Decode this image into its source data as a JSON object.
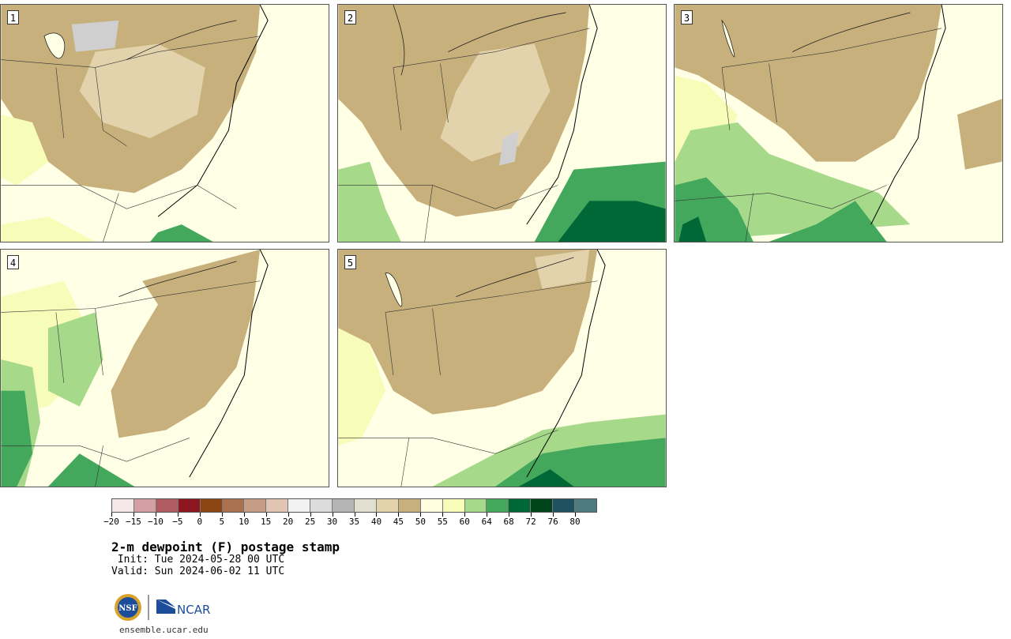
{
  "panels": [
    {
      "label": "1",
      "region": "map-1"
    },
    {
      "label": "2",
      "region": "map-2"
    },
    {
      "label": "3",
      "region": "map-3"
    },
    {
      "label": "4",
      "region": "map-4"
    },
    {
      "label": "5",
      "region": "map-5"
    }
  ],
  "legend": {
    "colors": [
      "#f4e8e8",
      "#d4a0a4",
      "#b05a62",
      "#8c1720",
      "#8b4513",
      "#a97150",
      "#c59d86",
      "#e0c4b4",
      "#f2f2f2",
      "#dcdcdc",
      "#b4b4b4",
      "#dfe0cf",
      "#e3d3ac",
      "#c7b07b",
      "#ffffe0",
      "#f7fcb9",
      "#a6d98a",
      "#43a85c",
      "#006837",
      "#00441b",
      "#1f5160",
      "#4d7b80"
    ],
    "ticks": [
      "−20",
      "−15",
      "−10",
      "−5",
      "0",
      "5",
      "10",
      "15",
      "20",
      "25",
      "30",
      "35",
      "40",
      "45",
      "50",
      "55",
      "60",
      "64",
      "68",
      "72",
      "76",
      "80"
    ]
  },
  "title": "2-m dewpoint (F) postage stamp",
  "init": " Init: Tue 2024-05-28 00 UTC",
  "valid": "Valid: Sun 2024-06-02 11 UTC",
  "logos": {
    "nsf_text": "NSF",
    "ncar_text": "NCAR",
    "nsf_icon": "nsf-logo-icon",
    "ncar_icon": "ncar-logo-icon"
  },
  "url": "ensemble.ucar.edu"
}
